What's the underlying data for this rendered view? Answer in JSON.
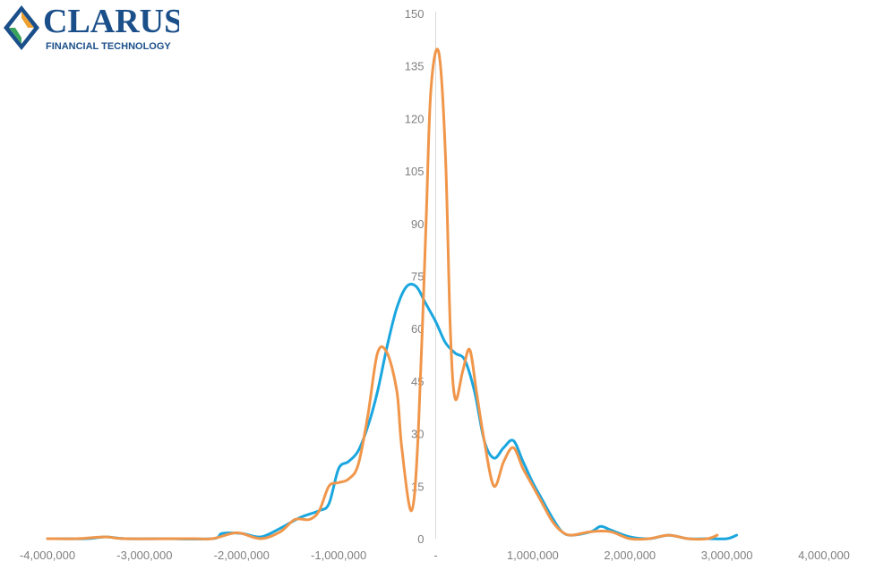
{
  "logo": {
    "name": "CLARUS",
    "tagline": "FINANCIAL TECHNOLOGY",
    "colors": {
      "text": "#1b4f8a",
      "diamond_blue": "#1b4f8a",
      "diamond_orange": "#f0a030",
      "diamond_green": "#3aa35a"
    }
  },
  "chart_data": {
    "type": "line",
    "title": "",
    "xlabel": "",
    "ylabel": "",
    "xlim": [
      -4000000,
      4000000
    ],
    "ylim": [
      0,
      150
    ],
    "x_ticks": [
      -4000000,
      -3000000,
      -2000000,
      -1000000,
      0,
      1000000,
      2000000,
      3000000,
      4000000
    ],
    "x_tick_labels": [
      "-4,000,000",
      "-3,000,000",
      "-2,000,000",
      "-1,000,000",
      "-",
      "1,000,000",
      "2,000,000",
      "3,000,000",
      "4,000,000"
    ],
    "y_ticks": [
      0,
      15,
      30,
      45,
      60,
      75,
      90,
      105,
      120,
      135,
      150
    ],
    "y_tick_labels": [
      "0",
      "15",
      "30",
      "45",
      "60",
      "75",
      "90",
      "105",
      "120",
      "135",
      "150"
    ],
    "grid": false,
    "legend": "none",
    "series": [
      {
        "color": "#1aa6df",
        "points": [
          [
            -4000000,
            0
          ],
          [
            -3600000,
            0
          ],
          [
            -3400000,
            0.5
          ],
          [
            -3200000,
            0
          ],
          [
            -2800000,
            0
          ],
          [
            -2300000,
            0
          ],
          [
            -2200000,
            1.5
          ],
          [
            -2000000,
            1.5
          ],
          [
            -1800000,
            0.5
          ],
          [
            -1600000,
            3
          ],
          [
            -1400000,
            6
          ],
          [
            -1200000,
            8
          ],
          [
            -1100000,
            10
          ],
          [
            -1000000,
            20
          ],
          [
            -900000,
            22
          ],
          [
            -800000,
            25
          ],
          [
            -700000,
            32
          ],
          [
            -600000,
            42
          ],
          [
            -500000,
            55
          ],
          [
            -400000,
            66
          ],
          [
            -300000,
            72
          ],
          [
            -200000,
            72
          ],
          [
            -100000,
            67
          ],
          [
            0,
            62
          ],
          [
            100000,
            56
          ],
          [
            200000,
            53
          ],
          [
            300000,
            51
          ],
          [
            400000,
            42
          ],
          [
            500000,
            28
          ],
          [
            600000,
            23
          ],
          [
            700000,
            26
          ],
          [
            800000,
            28
          ],
          [
            900000,
            22
          ],
          [
            1000000,
            16
          ],
          [
            1100000,
            11
          ],
          [
            1200000,
            6
          ],
          [
            1300000,
            2
          ],
          [
            1400000,
            1
          ],
          [
            1600000,
            2
          ],
          [
            1700000,
            3.5
          ],
          [
            1800000,
            2.5
          ],
          [
            2000000,
            0.5
          ],
          [
            2200000,
            0
          ],
          [
            2400000,
            1
          ],
          [
            2600000,
            0
          ],
          [
            2800000,
            0
          ],
          [
            3000000,
            0
          ],
          [
            3100000,
            1
          ]
        ]
      },
      {
        "color": "#f0964a",
        "points": [
          [
            -4000000,
            0
          ],
          [
            -3700000,
            0
          ],
          [
            -3400000,
            0.5
          ],
          [
            -3200000,
            0
          ],
          [
            -2500000,
            0
          ],
          [
            -2300000,
            0
          ],
          [
            -2100000,
            1.5
          ],
          [
            -2000000,
            1.5
          ],
          [
            -1800000,
            0
          ],
          [
            -1600000,
            2
          ],
          [
            -1450000,
            5.5
          ],
          [
            -1300000,
            5.5
          ],
          [
            -1200000,
            8
          ],
          [
            -1100000,
            15
          ],
          [
            -1000000,
            16
          ],
          [
            -900000,
            17
          ],
          [
            -800000,
            21
          ],
          [
            -700000,
            35
          ],
          [
            -600000,
            53
          ],
          [
            -500000,
            53
          ],
          [
            -400000,
            42
          ],
          [
            -350000,
            26
          ],
          [
            -250000,
            8
          ],
          [
            -180000,
            30
          ],
          [
            -100000,
            90
          ],
          [
            -50000,
            128
          ],
          [
            30000,
            139
          ],
          [
            100000,
            110
          ],
          [
            150000,
            60
          ],
          [
            200000,
            40
          ],
          [
            280000,
            48
          ],
          [
            350000,
            54
          ],
          [
            420000,
            42
          ],
          [
            500000,
            28
          ],
          [
            600000,
            15
          ],
          [
            700000,
            22
          ],
          [
            800000,
            26
          ],
          [
            900000,
            20
          ],
          [
            1000000,
            15
          ],
          [
            1100000,
            10
          ],
          [
            1200000,
            5
          ],
          [
            1300000,
            2
          ],
          [
            1400000,
            1
          ],
          [
            1600000,
            2
          ],
          [
            1800000,
            2
          ],
          [
            2000000,
            0
          ],
          [
            2200000,
            0
          ],
          [
            2400000,
            1
          ],
          [
            2600000,
            0
          ],
          [
            2800000,
            0
          ],
          [
            2900000,
            1
          ]
        ]
      }
    ]
  }
}
